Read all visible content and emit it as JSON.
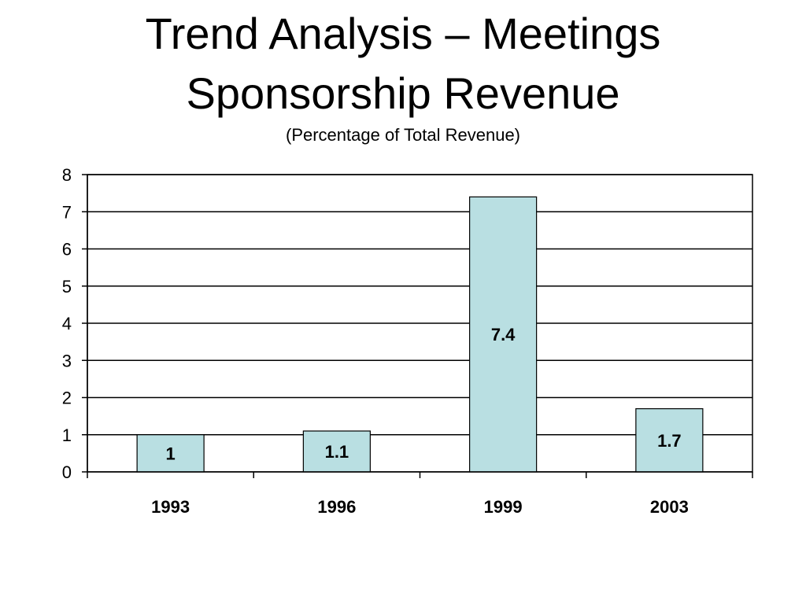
{
  "slide": {
    "title_line_1": "Trend Analysis – Meetings",
    "title_line_2": "Sponsorship Revenue",
    "subtitle": "(Percentage of Total Revenue)"
  },
  "chart_data": {
    "type": "bar",
    "categories": [
      "1993",
      "1996",
      "1999",
      "2003"
    ],
    "values": [
      1,
      1.1,
      7.4,
      1.7
    ],
    "data_labels": [
      "1",
      "1.1",
      "7.4",
      "1.7"
    ],
    "title": "Trend Analysis – Meetings Sponsorship Revenue",
    "subtitle": "(Percentage of Total Revenue)",
    "xlabel": "",
    "ylabel": "",
    "ylim": [
      0,
      8
    ],
    "yticks": [
      0,
      1,
      2,
      3,
      4,
      5,
      6,
      7,
      8
    ],
    "grid": true,
    "legend": "none",
    "colors": {
      "bar_fill": "#b9dfe2",
      "bar_stroke": "#000000",
      "grid": "#000000",
      "axis": "#000000"
    }
  }
}
